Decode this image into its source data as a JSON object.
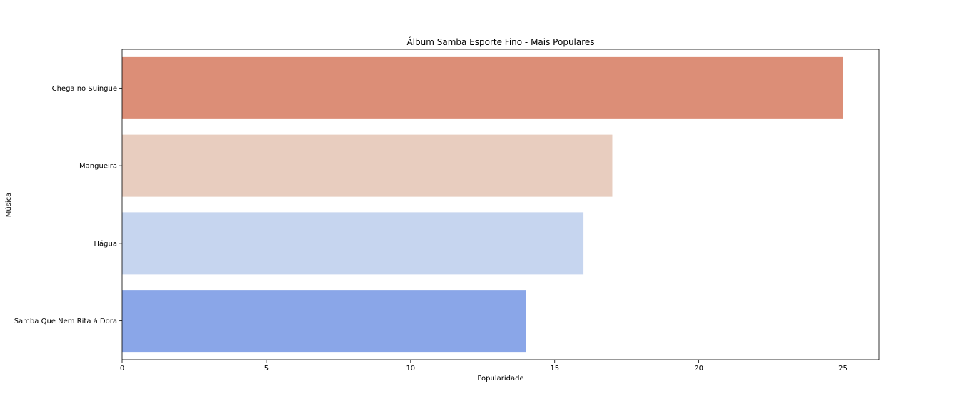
{
  "chart_data": {
    "type": "bar",
    "orientation": "horizontal",
    "title": "Álbum Samba Esporte Fino - Mais Populares",
    "xlabel": "Popularidade",
    "ylabel": "Música",
    "categories": [
      "Chega no Suingue",
      "Mangueira",
      "Hágua",
      "Samba Que Nem Rita à Dora"
    ],
    "values": [
      25,
      17,
      16,
      14
    ],
    "colors": [
      "#dc8e77",
      "#e8cdbf",
      "#c6d5ef",
      "#8aa6e8"
    ],
    "xlim": [
      0,
      26.25
    ],
    "xticks": [
      0,
      5,
      10,
      15,
      20,
      25
    ],
    "xtick_labels": [
      "0",
      "5",
      "10",
      "15",
      "20",
      "25"
    ],
    "grid": false,
    "legend": "none"
  }
}
